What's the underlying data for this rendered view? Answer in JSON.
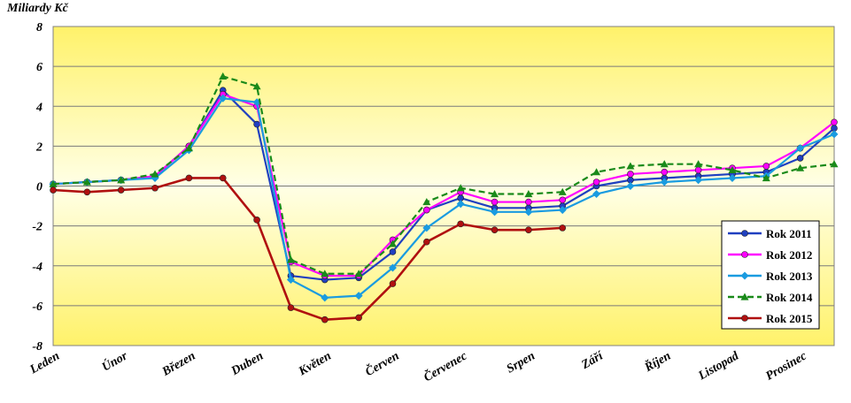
{
  "chart_data": {
    "type": "line",
    "ylabel": "Miliardy Kč",
    "ylim": [
      -8,
      8
    ],
    "yticks": [
      8,
      6,
      4,
      2,
      0,
      -2,
      -4,
      -6,
      -8
    ],
    "grid": "horizontal",
    "legend_position": "bottom-right",
    "background": "yellow-white vertical gradient",
    "x": [
      0,
      0.5,
      1,
      1.5,
      2,
      2.5,
      3,
      3.5,
      4,
      4.5,
      5,
      5.5,
      6,
      6.5,
      7,
      7.5,
      8,
      8.5,
      9,
      9.5,
      10,
      10.5,
      11,
      11.5
    ],
    "month_labels": [
      "Leden",
      "Únor",
      "Březen",
      "Duben",
      "Květen",
      "Červen",
      "Červenec",
      "Srpen",
      "Září",
      "Říjen",
      "Listopad",
      "Prosinec"
    ],
    "series": [
      {
        "name": "Rok 2011",
        "color": "#2040c0",
        "marker": "circle",
        "line_style": "solid",
        "values": [
          0.1,
          0.2,
          0.3,
          0.5,
          2.0,
          4.8,
          3.1,
          -4.5,
          -4.7,
          -4.6,
          -3.3,
          -1.2,
          -0.6,
          -1.1,
          -1.1,
          -1.0,
          0.0,
          0.3,
          0.4,
          0.5,
          0.6,
          0.7,
          1.4,
          2.9
        ]
      },
      {
        "name": "Rok 2012",
        "color": "#ff00ff",
        "marker": "circle",
        "line_style": "solid",
        "values": [
          0.1,
          0.2,
          0.3,
          0.5,
          2.0,
          4.6,
          4.0,
          -3.8,
          -4.5,
          -4.5,
          -2.7,
          -1.2,
          -0.3,
          -0.8,
          -0.8,
          -0.7,
          0.2,
          0.6,
          0.7,
          0.8,
          0.9,
          1.0,
          1.9,
          3.2
        ]
      },
      {
        "name": "Rok 2013",
        "color": "#1a9be0",
        "marker": "diamond",
        "line_style": "solid",
        "values": [
          0.1,
          0.2,
          0.3,
          0.4,
          1.8,
          4.4,
          4.2,
          -4.7,
          -5.6,
          -5.5,
          -4.1,
          -2.1,
          -0.9,
          -1.3,
          -1.3,
          -1.2,
          -0.4,
          0.0,
          0.2,
          0.3,
          0.4,
          0.5,
          1.9,
          2.6
        ]
      },
      {
        "name": "Rok 2014",
        "color": "#1a8a1a",
        "marker": "triangle",
        "line_style": "dashed",
        "values": [
          0.1,
          0.2,
          0.3,
          0.6,
          1.9,
          5.5,
          5.0,
          -3.7,
          -4.4,
          -4.4,
          -2.9,
          -0.8,
          -0.1,
          -0.4,
          -0.4,
          -0.3,
          0.7,
          1.0,
          1.1,
          1.1,
          0.8,
          0.4,
          0.9,
          1.1
        ]
      },
      {
        "name": "Rok 2015",
        "color": "#b01010",
        "marker": "circle",
        "line_style": "solid",
        "values": [
          -0.2,
          -0.3,
          -0.2,
          -0.1,
          0.4,
          0.4,
          -1.7,
          -6.1,
          -6.7,
          -6.6,
          -4.9,
          -2.8,
          -1.9,
          -2.2,
          -2.2,
          -2.1,
          null,
          null,
          null,
          null,
          null,
          null,
          null,
          null
        ]
      }
    ]
  }
}
